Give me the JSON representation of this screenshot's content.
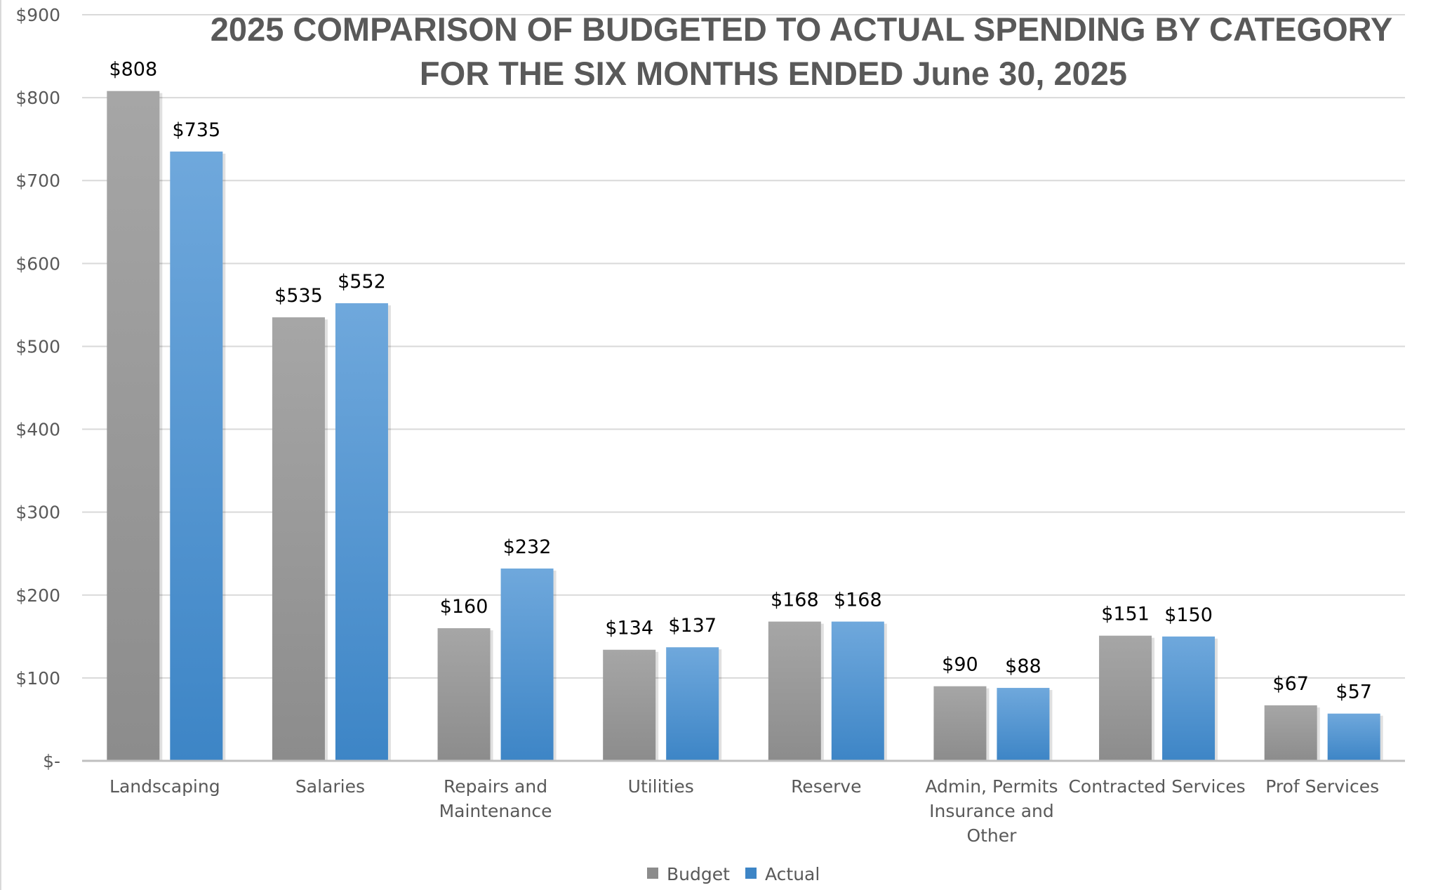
{
  "chart_data": {
    "type": "bar",
    "title": "2025 COMPARISON OF BUDGETED TO ACTUAL SPENDING BY CATEGORY",
    "subtitle": "FOR THE SIX MONTHS ENDED June 30, 2025",
    "categories": [
      [
        "Landscaping"
      ],
      [
        "Salaries"
      ],
      [
        "Repairs and",
        "Maintenance"
      ],
      [
        "Utilities"
      ],
      [
        "Reserve"
      ],
      [
        "Admin, Permits",
        "Insurance and",
        "Other"
      ],
      [
        "Contracted Services"
      ],
      [
        "Prof Services"
      ]
    ],
    "series": [
      {
        "name": "Budget",
        "color": "#a6a6a6",
        "color_dark": "#8c8c8c",
        "values": [
          808,
          535,
          160,
          134,
          168,
          90,
          151,
          67
        ],
        "labels": [
          "$808",
          "$535",
          "$160",
          "$134",
          "$168",
          "$90",
          "$151",
          "$67"
        ]
      },
      {
        "name": "Actual",
        "color": "#6fa8dc",
        "color_dark": "#3d85c6",
        "values": [
          735,
          552,
          232,
          137,
          168,
          88,
          150,
          57
        ],
        "labels": [
          "$735",
          "$552",
          "$232",
          "$137",
          "$168",
          "$88",
          "$150",
          "$57"
        ]
      }
    ],
    "ylim": [
      0,
      900
    ],
    "yticks": [
      {
        "value": 900,
        "label": "$900"
      },
      {
        "value": 800,
        "label": "$800"
      },
      {
        "value": 700,
        "label": "$700"
      },
      {
        "value": 600,
        "label": "$600"
      },
      {
        "value": 500,
        "label": "$500"
      },
      {
        "value": 400,
        "label": "$400"
      },
      {
        "value": 300,
        "label": "$300"
      },
      {
        "value": 200,
        "label": "$200"
      },
      {
        "value": 100,
        "label": "$100"
      },
      {
        "value": 0,
        "label": "$-"
      }
    ],
    "grid": true,
    "legend": "bottom-center"
  }
}
